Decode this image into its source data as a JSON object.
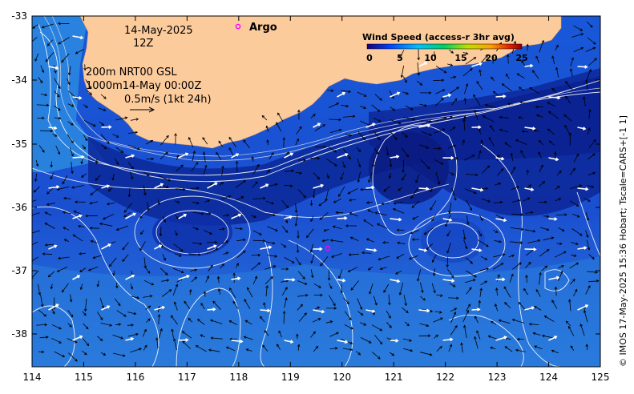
{
  "map": {
    "date_label": "14-May-2025",
    "time_label": "12Z",
    "depth_line1": "200m  NRT00 GSL",
    "depth_line2": "1000m14-May 00:00Z",
    "scale_label": "0.5m/s (1kt 24h)",
    "argo_label": "Argo",
    "credit": "© IMOS 17-May-2025 15:36 Hobart; Tscale=CARS+[-1 1]",
    "colors": {
      "land": "#FCCB9C",
      "ocean_dark": "#0A1E8C",
      "ocean_mid": "#1040C8",
      "ocean_light": "#2E8CE0",
      "argo": "#FF00FF"
    }
  },
  "legend": {
    "title": "Wind Speed (access-r 3hr avg)",
    "ticks": [
      "0",
      "5",
      "10",
      "15",
      "20",
      "25"
    ],
    "colors": [
      "#1a007a",
      "#0044ff",
      "#00c0ff",
      "#00d060",
      "#c0e000",
      "#ffa000",
      "#e02000",
      "#8a0000"
    ]
  },
  "axes": {
    "x_ticks": [
      "114",
      "115",
      "116",
      "117",
      "118",
      "119",
      "120",
      "121",
      "122",
      "123",
      "124",
      "125"
    ],
    "y_ticks": [
      "-33",
      "-34",
      "-35",
      "-36",
      "-37",
      "-38"
    ]
  }
}
